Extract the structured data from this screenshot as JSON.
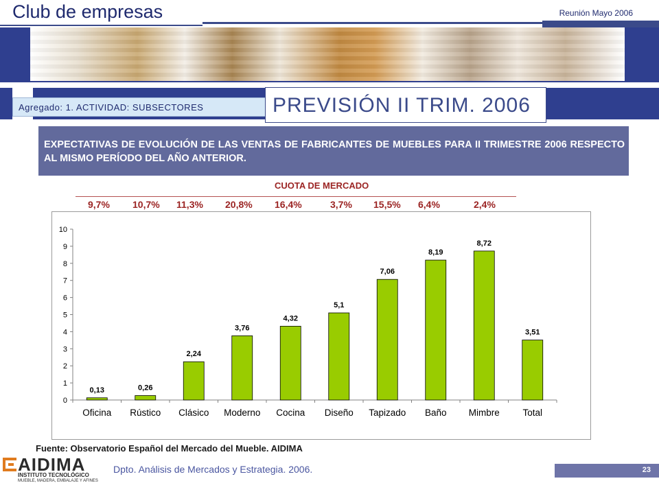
{
  "header": {
    "brand": "Club de empresas",
    "meeting": "Reunión Mayo 2006"
  },
  "section": {
    "agregado": "Agregado: 1. ACTIVIDAD: SUBSECTORES",
    "title": "PREVISIÓN II TRIM. 2006"
  },
  "expectativas": "EXPECTATIVAS DE EVOLUCIÓN DE LAS VENTAS DE FABRICANTES DE MUEBLES PARA II TRIMESTRE 2006 RESPECTO AL MISMO PERÍODO DEL AÑO ANTERIOR.",
  "cuota": {
    "title": "CUOTA DE MERCADO",
    "values": [
      "9,7%",
      "10,7%",
      "11,3%",
      "20,8%",
      "16,4%",
      "3,7%",
      "15,5%",
      "6,4%",
      "2,4%"
    ]
  },
  "chart_data": {
    "type": "bar",
    "categories": [
      "Oficina",
      "Rústico",
      "Clásico",
      "Moderno",
      "Cocina",
      "Diseño",
      "Tapizado",
      "Baño",
      "Mimbre",
      "Total"
    ],
    "values": [
      0.13,
      0.26,
      2.24,
      3.76,
      4.32,
      5.1,
      7.06,
      8.19,
      8.72,
      3.51
    ],
    "value_labels": [
      "0,13",
      "0,26",
      "2,24",
      "3,76",
      "4,32",
      "5,1",
      "7,06",
      "8,19",
      "8,72",
      "3,51"
    ],
    "ylim": [
      0,
      10
    ],
    "yticks": [
      0,
      1,
      2,
      3,
      4,
      5,
      6,
      7,
      8,
      9,
      10
    ],
    "bar_color": "#99cc00",
    "grid": false,
    "title": "",
    "xlabel": "",
    "ylabel": ""
  },
  "source": "Fuente: Observatorio Español del Mercado del Mueble. AIDIMA",
  "footer": {
    "logo": "AIDIMA",
    "logo_sub": "INSTITUTO TECNOLÓGICO",
    "logo_sub2": "MUEBLE, MADERA, EMBALAJE Y AFINES",
    "dept": "Dpto. Análisis de Mercados y Estrategia. 2006.",
    "page": "23"
  }
}
